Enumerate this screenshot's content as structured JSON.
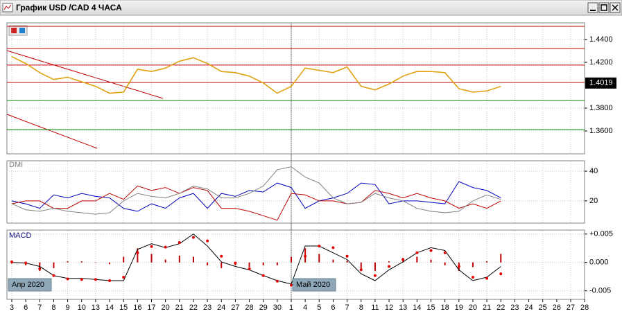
{
  "window": {
    "title": "График USD /CAD  4 ЧАСА"
  },
  "chart_data": [
    {
      "type": "line",
      "categories": [
        "3",
        "6",
        "7",
        "8",
        "9",
        "10",
        "13",
        "14",
        "15",
        "16",
        "17",
        "20",
        "21",
        "22",
        "23",
        "24",
        "27",
        "28",
        "29",
        "30",
        "1",
        "4",
        "5",
        "6",
        "7",
        "8",
        "11",
        "12",
        "13",
        "14",
        "15",
        "18",
        "19",
        "20",
        "21",
        "22",
        "23",
        "24",
        "25",
        "26",
        "27",
        "28"
      ],
      "month_labels": [
        "Апр 2020",
        "Май 2020"
      ],
      "series": [
        {
          "color": "#e0a010",
          "values": [
            1.425,
            1.419,
            1.411,
            1.405,
            1.407,
            1.403,
            1.399,
            1.393,
            1.394,
            1.414,
            1.412,
            1.415,
            1.421,
            1.424,
            1.419,
            1.412,
            1.411,
            1.408,
            1.402,
            1.393,
            1.399,
            1.415,
            1.413,
            1.411,
            1.416,
            1.399,
            1.396,
            1.401,
            1.408,
            1.412,
            1.412,
            1.411,
            1.397,
            1.394,
            1.395,
            1.399,
            null,
            null,
            null,
            null,
            null,
            null
          ]
        }
      ],
      "levels": [
        {
          "value": 1.4515,
          "color": "#c00000"
        },
        {
          "value": 1.4321,
          "color": "#c00000"
        },
        {
          "value": 1.4176,
          "color": "#c00000"
        },
        {
          "value": 1.4024,
          "color": "#c00000"
        },
        {
          "value": 1.3867,
          "color": "#008000"
        },
        {
          "value": 1.3612,
          "color": "#008000"
        }
      ],
      "current_price": 1.4019,
      "ylim": [
        1.34,
        1.4545
      ],
      "yticks": [
        {
          "value": 1.36,
          "label": "1.3600"
        },
        {
          "value": 1.38,
          "label": "1.3800"
        },
        {
          "value": 1.42,
          "label": "1.4200"
        },
        {
          "value": 1.44,
          "label": "1.4400"
        }
      ],
      "grid": true
    },
    {
      "type": "line",
      "title": "DMI",
      "series": [
        {
          "color": "#0000c0",
          "values": [
            20,
            18,
            15,
            24,
            22,
            25,
            23,
            22,
            15,
            13,
            18,
            15,
            22,
            25,
            15,
            25,
            23,
            27,
            26,
            32,
            29,
            15,
            20,
            22,
            25,
            32,
            31,
            18,
            20,
            20,
            19,
            18,
            33,
            29,
            27,
            22,
            null,
            null,
            null,
            null,
            null,
            null
          ]
        },
        {
          "color": "#c00000",
          "values": [
            18,
            20,
            20,
            15,
            15,
            20,
            20,
            25,
            21,
            30,
            27,
            29,
            25,
            29,
            27,
            15,
            15,
            13,
            10,
            7,
            25,
            24,
            20,
            20,
            18,
            19,
            27,
            25,
            22,
            25,
            22,
            20,
            15,
            18,
            15,
            20,
            null,
            null,
            null,
            null,
            null,
            null
          ]
        },
        {
          "color": "#808080",
          "values": [
            18,
            14,
            13,
            15,
            13,
            12,
            11,
            12,
            20,
            25,
            23,
            22,
            25,
            30,
            28,
            22,
            22,
            25,
            30,
            41,
            43,
            36,
            32,
            22,
            18,
            19,
            25,
            22,
            20,
            15,
            13,
            12,
            13,
            20,
            24,
            21,
            null,
            null,
            null,
            null,
            null,
            null
          ]
        }
      ],
      "ylim": [
        5,
        47
      ],
      "yticks": [
        20,
        40
      ],
      "grid": true
    },
    {
      "type": "macd",
      "title": "MACD",
      "series": [
        {
          "color": "#c00000",
          "style": "bar",
          "values": [
            -0.0002,
            -0.0005,
            -0.0015,
            -0.001,
            0.0002,
            0.0002,
            0,
            -0.0003,
            0.001,
            0.0025,
            0.0015,
            0.0005,
            0.0012,
            0.001,
            -0.0005,
            -0.001,
            -0.0005,
            -0.0008,
            -0.0005,
            -0.0005,
            0.001,
            0.0025,
            0.0015,
            0.0005,
            0.0003,
            -0.0015,
            -0.0015,
            0.0002,
            0.0008,
            0.001,
            0.0005,
            -0.0005,
            -0.0015,
            -0.0008,
            0.0002,
            0.0015,
            null,
            null,
            null,
            null,
            null,
            null
          ]
        },
        {
          "color": "#000000",
          "style": "line",
          "values": [
            0,
            -0.0001,
            -0.0007,
            -0.0023,
            -0.0028,
            -0.0028,
            -0.003,
            -0.0032,
            -0.0032,
            0.0023,
            0.0033,
            0.0026,
            0.0033,
            0.005,
            0.0029,
            0.0001,
            -0.0007,
            -0.0013,
            -0.0023,
            -0.0032,
            -0.0038,
            0.0029,
            0.0029,
            0.0017,
            0.0005,
            -0.002,
            -0.0032,
            -0.0013,
            0.0001,
            0.0017,
            0.0026,
            0.0021,
            -0.0013,
            -0.0032,
            -0.0026,
            -0.0007,
            null,
            null,
            null,
            null,
            null,
            null
          ]
        },
        {
          "color": "#e00000",
          "style": "dots",
          "values": [
            0.0001,
            -0.0001,
            -0.0011,
            -0.0023,
            -0.0029,
            -0.003,
            -0.003,
            -0.0032,
            -0.0026,
            0.0017,
            0.0028,
            0.0027,
            0.0035,
            0.0044,
            0.0038,
            0.0011,
            -0.0001,
            -0.0011,
            -0.0023,
            -0.0033,
            -0.004,
            0.0011,
            0.0029,
            0.0026,
            0.0011,
            -0.0013,
            -0.0023,
            -0.0007,
            0.0005,
            0.0017,
            0.0021,
            0.0017,
            -0.0007,
            -0.0026,
            -0.0028,
            -0.002,
            null,
            null,
            null,
            null,
            null,
            null
          ]
        }
      ],
      "ylim": [
        -0.0065,
        0.0057
      ],
      "yticks": [
        {
          "value": -0.005,
          "label": "-0.005"
        },
        {
          "value": 0,
          "label": "0.000"
        },
        {
          "value": 0.005,
          "label": "+0.005"
        }
      ],
      "grid": true
    }
  ]
}
